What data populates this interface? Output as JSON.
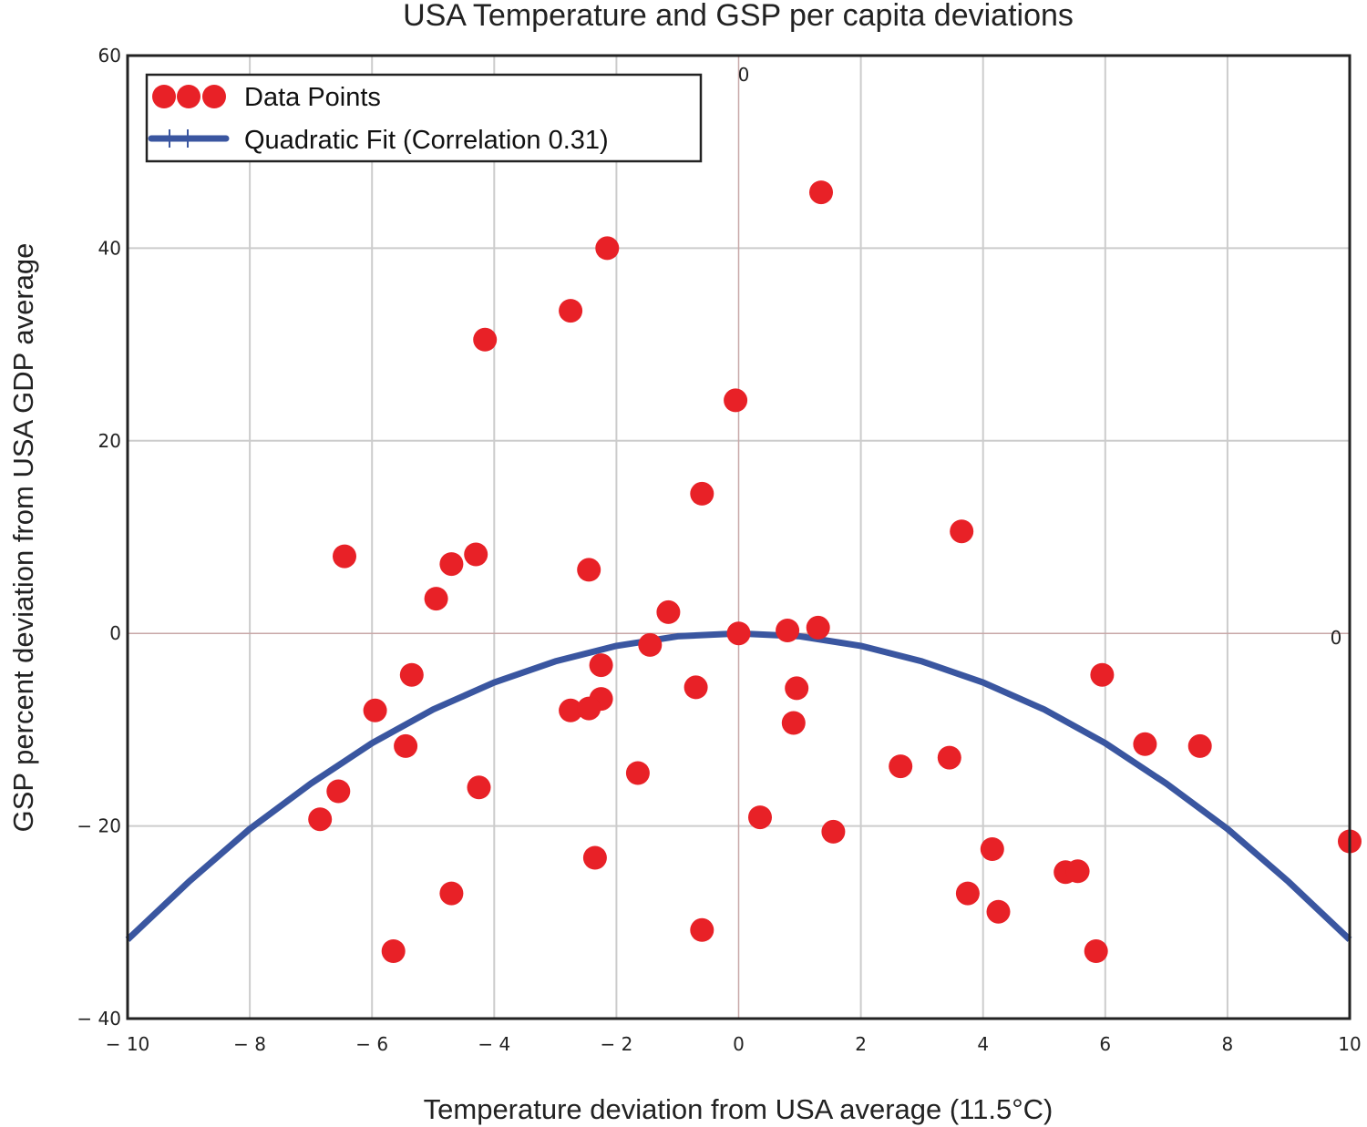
{
  "chart_data": {
    "type": "scatter",
    "title": "USA Temperature and GSP per capita deviations",
    "xlabel": "Temperature deviation from USA average (11.5°C)",
    "ylabel": "GSP percent deviation from USA GDP average",
    "xlim": [
      -10,
      10
    ],
    "ylim": [
      -40,
      60
    ],
    "grid": true,
    "x_ticks": [
      -10,
      -8,
      -6,
      -4,
      -2,
      0,
      2,
      4,
      6,
      8,
      10
    ],
    "x_tick_labels": [
      "− 10",
      "− 8",
      "− 6",
      "− 4",
      "− 2",
      "0",
      "2",
      "4",
      "6",
      "8",
      "10"
    ],
    "y_ticks": [
      -40,
      -20,
      0,
      20,
      40,
      60
    ],
    "y_tick_labels": [
      "− 40",
      "− 20",
      "0",
      "20",
      "40",
      "60"
    ],
    "axis_origin_labels": {
      "x_axis_zero": "0",
      "y_axis_zero": "0"
    },
    "legend": {
      "position": "top-left",
      "entries": [
        {
          "label": "Data Points",
          "marker": "circle",
          "color": "#e82127"
        },
        {
          "label": "Quadratic Fit (Correlation 0.31)",
          "marker": "line",
          "color": "#3a56a0"
        }
      ]
    },
    "series": [
      {
        "name": "Data Points",
        "type": "scatter",
        "color": "#e82127",
        "points": [
          [
            1.35,
            45.8
          ],
          [
            -2.15,
            40.0
          ],
          [
            -2.75,
            33.5
          ],
          [
            -4.15,
            30.5
          ],
          [
            -0.05,
            24.2
          ],
          [
            -0.6,
            14.5
          ],
          [
            3.65,
            10.6
          ],
          [
            -6.45,
            8.0
          ],
          [
            -4.3,
            8.2
          ],
          [
            -4.7,
            7.2
          ],
          [
            -2.45,
            6.6
          ],
          [
            -4.95,
            3.6
          ],
          [
            -1.15,
            2.2
          ],
          [
            0.0,
            0.0
          ],
          [
            0.8,
            0.3
          ],
          [
            1.3,
            0.6
          ],
          [
            -1.45,
            -1.2
          ],
          [
            -2.25,
            -3.3
          ],
          [
            -5.35,
            -4.3
          ],
          [
            5.95,
            -4.3
          ],
          [
            -0.7,
            -5.6
          ],
          [
            0.95,
            -5.7
          ],
          [
            -2.25,
            -6.8
          ],
          [
            -2.75,
            -8.0
          ],
          [
            -2.45,
            -7.8
          ],
          [
            -5.95,
            -8.0
          ],
          [
            0.9,
            -9.3
          ],
          [
            -5.45,
            -11.7
          ],
          [
            6.65,
            -11.5
          ],
          [
            7.55,
            -11.7
          ],
          [
            3.45,
            -12.9
          ],
          [
            2.65,
            -13.8
          ],
          [
            -1.65,
            -14.5
          ],
          [
            -6.55,
            -16.4
          ],
          [
            -4.25,
            -16.0
          ],
          [
            -6.85,
            -19.3
          ],
          [
            0.35,
            -19.1
          ],
          [
            1.55,
            -20.6
          ],
          [
            -2.35,
            -23.3
          ],
          [
            4.15,
            -22.4
          ],
          [
            10.0,
            -21.6
          ],
          [
            5.35,
            -24.8
          ],
          [
            5.55,
            -24.7
          ],
          [
            -4.7,
            -27.0
          ],
          [
            3.75,
            -27.0
          ],
          [
            4.25,
            -28.9
          ],
          [
            -0.6,
            -30.8
          ],
          [
            -5.65,
            -33.0
          ],
          [
            5.85,
            -33.0
          ]
        ]
      },
      {
        "name": "Quadratic Fit (Correlation 0.31)",
        "type": "line",
        "color": "#3a56a0",
        "x": [
          -10,
          -9,
          -8,
          -7,
          -6,
          -5,
          -4,
          -3,
          -2,
          -1,
          0,
          1,
          2,
          3,
          4,
          5,
          6,
          7,
          8,
          9,
          10
        ],
        "y": [
          -31.8,
          -25.8,
          -20.3,
          -15.6,
          -11.4,
          -7.9,
          -5.1,
          -2.9,
          -1.3,
          -0.3,
          0.0,
          -0.3,
          -1.3,
          -2.9,
          -5.1,
          -7.9,
          -11.4,
          -15.6,
          -20.3,
          -25.8,
          -31.8
        ]
      }
    ]
  }
}
